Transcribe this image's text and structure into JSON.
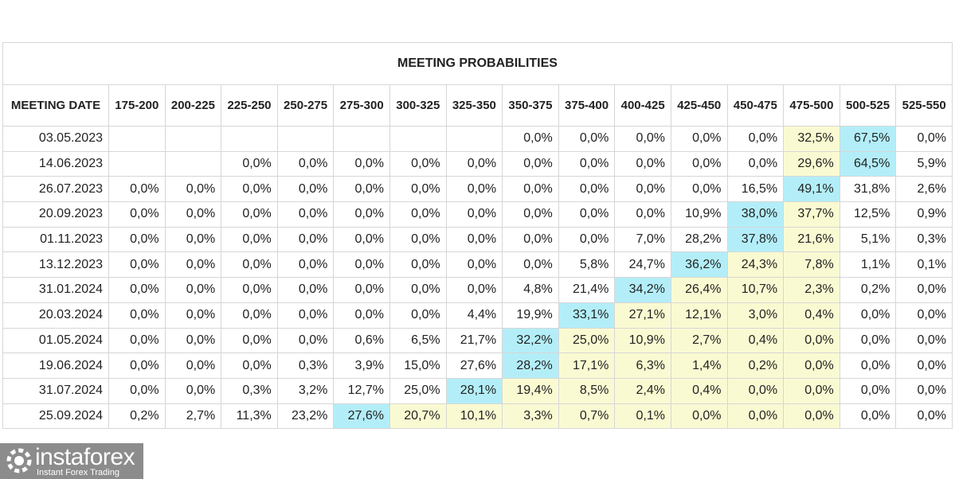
{
  "table": {
    "title": "MEETING PROBABILITIES",
    "header": [
      "MEETING DATE",
      "175-200",
      "200-225",
      "225-250",
      "250-275",
      "275-300",
      "300-325",
      "325-350",
      "350-375",
      "375-400",
      "400-425",
      "425-450",
      "450-475",
      "475-500",
      "500-525",
      "525-550"
    ],
    "rows": [
      {
        "date": "03.05.2023",
        "cells": [
          null,
          null,
          null,
          null,
          null,
          null,
          null,
          "0,0%",
          "0,0%",
          "0,0%",
          "0,0%",
          "0,0%",
          "32,5%",
          "67,5%",
          "0,0%"
        ],
        "colors": [
          null,
          null,
          null,
          null,
          null,
          null,
          null,
          null,
          null,
          null,
          null,
          null,
          "#fafad2",
          "#b3eef8",
          null
        ]
      },
      {
        "date": "14.06.2023",
        "cells": [
          null,
          null,
          "0,0%",
          "0,0%",
          "0,0%",
          "0,0%",
          "0,0%",
          "0,0%",
          "0,0%",
          "0,0%",
          "0,0%",
          "0,0%",
          "29,6%",
          "64,5%",
          "5,9%"
        ],
        "colors": [
          null,
          null,
          null,
          null,
          null,
          null,
          null,
          null,
          null,
          null,
          null,
          null,
          "#fafad2",
          "#b3eef8",
          null
        ]
      },
      {
        "date": "26.07.2023",
        "cells": [
          "0,0%",
          "0,0%",
          "0,0%",
          "0,0%",
          "0,0%",
          "0,0%",
          "0,0%",
          "0,0%",
          "0,0%",
          "0,0%",
          "0,0%",
          "16,5%",
          "49,1%",
          "31,8%",
          "2,6%"
        ],
        "colors": [
          null,
          null,
          null,
          null,
          null,
          null,
          null,
          null,
          null,
          null,
          null,
          null,
          "#b3eef8",
          null,
          null
        ]
      },
      {
        "date": "20.09.2023",
        "cells": [
          "0,0%",
          "0,0%",
          "0,0%",
          "0,0%",
          "0,0%",
          "0,0%",
          "0,0%",
          "0,0%",
          "0,0%",
          "0,0%",
          "10,9%",
          "38,0%",
          "37,7%",
          "12,5%",
          "0,9%"
        ],
        "colors": [
          null,
          null,
          null,
          null,
          null,
          null,
          null,
          null,
          null,
          null,
          null,
          "#b3eef8",
          "#fafad2",
          null,
          null
        ]
      },
      {
        "date": "01.11.2023",
        "cells": [
          "0,0%",
          "0,0%",
          "0,0%",
          "0,0%",
          "0,0%",
          "0,0%",
          "0,0%",
          "0,0%",
          "0,0%",
          "7,0%",
          "28,2%",
          "37,8%",
          "21,6%",
          "5,1%",
          "0,3%"
        ],
        "colors": [
          null,
          null,
          null,
          null,
          null,
          null,
          null,
          null,
          null,
          null,
          null,
          "#b3eef8",
          "#fafad2",
          null,
          null
        ]
      },
      {
        "date": "13.12.2023",
        "cells": [
          "0,0%",
          "0,0%",
          "0,0%",
          "0,0%",
          "0,0%",
          "0,0%",
          "0,0%",
          "0,0%",
          "5,8%",
          "24,7%",
          "36,2%",
          "24,3%",
          "7,8%",
          "1,1%",
          "0,1%"
        ],
        "colors": [
          null,
          null,
          null,
          null,
          null,
          null,
          null,
          null,
          null,
          null,
          "#b3eef8",
          "#fafad2",
          "#fafad2",
          null,
          null
        ]
      },
      {
        "date": "31.01.2024",
        "cells": [
          "0,0%",
          "0,0%",
          "0,0%",
          "0,0%",
          "0,0%",
          "0,0%",
          "0,0%",
          "4,8%",
          "21,4%",
          "34,2%",
          "26,4%",
          "10,7%",
          "2,3%",
          "0,2%",
          "0,0%"
        ],
        "colors": [
          null,
          null,
          null,
          null,
          null,
          null,
          null,
          null,
          null,
          "#b3eef8",
          "#fafad2",
          "#fafad2",
          "#fafad2",
          null,
          null
        ]
      },
      {
        "date": "20.03.2024",
        "cells": [
          "0,0%",
          "0,0%",
          "0,0%",
          "0,0%",
          "0,0%",
          "0,0%",
          "4,4%",
          "19,9%",
          "33,1%",
          "27,1%",
          "12,1%",
          "3,0%",
          "0,4%",
          "0,0%",
          "0,0%"
        ],
        "colors": [
          null,
          null,
          null,
          null,
          null,
          null,
          null,
          null,
          "#b3eef8",
          "#fafad2",
          "#fafad2",
          "#fafad2",
          "#fafad2",
          null,
          null
        ]
      },
      {
        "date": "01.05.2024",
        "cells": [
          "0,0%",
          "0,0%",
          "0,0%",
          "0,0%",
          "0,6%",
          "6,5%",
          "21,7%",
          "32,2%",
          "25,0%",
          "10,9%",
          "2,7%",
          "0,4%",
          "0,0%",
          "0,0%",
          "0,0%"
        ],
        "colors": [
          null,
          null,
          null,
          null,
          null,
          null,
          null,
          "#b3eef8",
          "#fafad2",
          "#fafad2",
          "#fafad2",
          "#fafad2",
          "#fafad2",
          null,
          null
        ]
      },
      {
        "date": "19.06.2024",
        "cells": [
          "0,0%",
          "0,0%",
          "0,0%",
          "0,3%",
          "3,9%",
          "15,0%",
          "27,6%",
          "28,2%",
          "17,1%",
          "6,3%",
          "1,4%",
          "0,2%",
          "0,0%",
          "0,0%",
          "0,0%"
        ],
        "colors": [
          null,
          null,
          null,
          null,
          null,
          null,
          null,
          "#b3eef8",
          "#fafad2",
          "#fafad2",
          "#fafad2",
          "#fafad2",
          "#fafad2",
          null,
          null
        ]
      },
      {
        "date": "31.07.2024",
        "cells": [
          "0,0%",
          "0,0%",
          "0,3%",
          "3,2%",
          "12,7%",
          "25,0%",
          "28,1%",
          "19,4%",
          "8,5%",
          "2,4%",
          "0,4%",
          "0,0%",
          "0,0%",
          "0,0%",
          "0,0%"
        ],
        "colors": [
          null,
          null,
          null,
          null,
          null,
          null,
          "#b3eef8",
          "#fafad2",
          "#fafad2",
          "#fafad2",
          "#fafad2",
          "#fafad2",
          "#fafad2",
          null,
          null
        ]
      },
      {
        "date": "25.09.2024",
        "cells": [
          "0,2%",
          "2,7%",
          "11,3%",
          "23,2%",
          "27,6%",
          "20,7%",
          "10,1%",
          "3,3%",
          "0,7%",
          "0,1%",
          "0,0%",
          "0,0%",
          "0,0%",
          "0,0%",
          "0,0%"
        ],
        "colors": [
          null,
          null,
          null,
          null,
          "#b3eef8",
          "#fafad2",
          "#fafad2",
          "#fafad2",
          "#fafad2",
          "#fafad2",
          "#fafad2",
          "#fafad2",
          "#fafad2",
          null,
          null
        ]
      }
    ]
  },
  "logo": {
    "name": "instaforex",
    "tagline": "Instant Forex Trading"
  }
}
